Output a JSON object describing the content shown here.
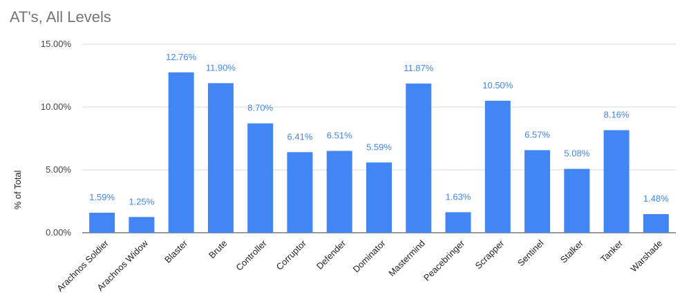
{
  "chart_data": {
    "type": "bar",
    "title": "AT's, All Levels",
    "xlabel": "",
    "ylabel": "% of Total",
    "ylim": [
      0,
      15
    ],
    "yticks": [
      0,
      5,
      10,
      15
    ],
    "ytick_labels": [
      "0.00%",
      "5.00%",
      "10.00%",
      "15.00%"
    ],
    "grid": true,
    "legend": "none",
    "bar_color": "#4285f4",
    "categories": [
      "Arachnos Soldier",
      "Arachnos Widow",
      "Blaster",
      "Brute",
      "Controller",
      "Corruptor",
      "Defender",
      "Dominator",
      "Mastermind",
      "Peacebringer",
      "Scrapper",
      "Sentinel",
      "Stalker",
      "Tanker",
      "Warshade"
    ],
    "values": [
      1.59,
      1.25,
      12.76,
      11.9,
      8.7,
      6.41,
      6.51,
      5.59,
      11.87,
      1.63,
      10.5,
      6.57,
      5.08,
      8.16,
      1.48
    ],
    "data_labels": [
      "1.59%",
      "1.25%",
      "12.76%",
      "11.90%",
      "8.70%",
      "6.41%",
      "6.51%",
      "5.59%",
      "11.87%",
      "1.63%",
      "10.50%",
      "6.57%",
      "5.08%",
      "8.16%",
      "1.48%"
    ]
  }
}
